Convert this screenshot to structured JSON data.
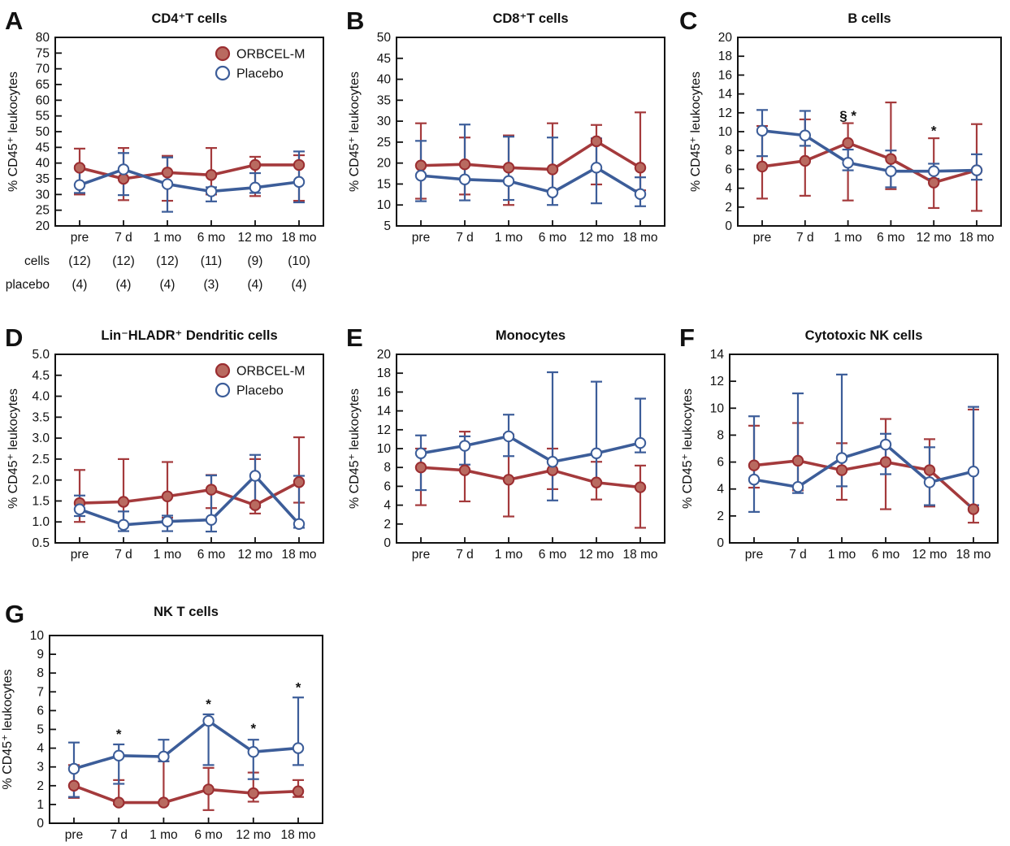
{
  "figure": {
    "type": "multi-panel-line-figure",
    "categories": [
      "pre",
      "7 d",
      "1 mo",
      "6 mo",
      "12 mo",
      "18 mo"
    ],
    "ylabel": "% CD45⁺ leukocytes"
  },
  "colors": {
    "treatment_line": "#a43a3c",
    "treatment_marker_fill": "#b96a60",
    "treatment_marker_stroke": "#9b2e31",
    "placebo_line": "#3c5d99",
    "placebo_marker_fill": "#ffffff",
    "frame": "#111111",
    "text": "#111111"
  },
  "legend": {
    "items": [
      {
        "label": "ORBCEL-M",
        "marker": "filled-red-circle"
      },
      {
        "label": "Placebo",
        "marker": "open-blue-circle"
      }
    ]
  },
  "chart_data": [
    {
      "panel": "A",
      "type": "line",
      "title": "CD4⁺T cells",
      "ylabel": "% CD45⁺ leukocytes",
      "xlabel": "",
      "categories": [
        "pre",
        "7 d",
        "1 mo",
        "6 mo",
        "12 mo",
        "18 mo"
      ],
      "ylim": [
        20,
        80
      ],
      "ystep": 5,
      "ytick_decimals": 0,
      "legend": true,
      "series": [
        {
          "name": "ORBCEL-M",
          "values": [
            38.5,
            35.0,
            37.0,
            36.2,
            39.4,
            39.4
          ],
          "err_lo": [
            30.0,
            28.2,
            28.0,
            30.0,
            29.5,
            28.0
          ],
          "err_hi": [
            44.6,
            44.8,
            42.3,
            44.8,
            42.0,
            42.5
          ]
        },
        {
          "name": "Placebo",
          "values": [
            33.0,
            38.0,
            33.3,
            31.0,
            32.2,
            34.0
          ],
          "err_lo": [
            30.5,
            29.8,
            24.5,
            27.8,
            30.5,
            27.5
          ],
          "err_hi": [
            39.0,
            43.2,
            41.8,
            32.3,
            36.8,
            43.7
          ]
        }
      ],
      "annotations": [],
      "sample_size_rows": [
        {
          "label": "cells",
          "values": [
            "(12)",
            "(12)",
            "(12)",
            "(11)",
            "(9)",
            "(10)"
          ]
        },
        {
          "label": "placebo",
          "values": [
            "(4)",
            "(4)",
            "(4)",
            "(3)",
            "(4)",
            "(4)"
          ]
        }
      ]
    },
    {
      "panel": "B",
      "type": "line",
      "title": "CD8⁺T cells",
      "ylabel": "% CD45⁺ leukocytes",
      "xlabel": "",
      "categories": [
        "pre",
        "7 d",
        "1 mo",
        "6 mo",
        "12 mo",
        "18 mo"
      ],
      "ylim": [
        5,
        50
      ],
      "ystep": 5,
      "ytick_decimals": 0,
      "legend": false,
      "series": [
        {
          "name": "ORBCEL-M",
          "values": [
            19.4,
            19.7,
            18.9,
            18.5,
            25.2,
            18.9
          ],
          "err_lo": [
            11.5,
            12.5,
            10.0,
            13.0,
            14.9,
            13.5
          ],
          "err_hi": [
            29.5,
            26.1,
            26.6,
            29.5,
            29.1,
            32.1
          ]
        },
        {
          "name": "Placebo",
          "values": [
            17.0,
            16.1,
            15.7,
            13.0,
            18.9,
            12.6
          ],
          "err_lo": [
            10.9,
            11.1,
            11.2,
            10.0,
            10.4,
            9.7
          ],
          "err_hi": [
            25.3,
            29.2,
            26.3,
            26.1,
            25.9,
            16.6
          ]
        }
      ],
      "annotations": []
    },
    {
      "panel": "C",
      "type": "line",
      "title": "B cells",
      "ylabel": "% CD45⁺ leukocytes",
      "xlabel": "",
      "categories": [
        "pre",
        "7 d",
        "1 mo",
        "6 mo",
        "12 mo",
        "18 mo"
      ],
      "ylim": [
        0,
        20
      ],
      "ystep": 2,
      "ytick_decimals": 0,
      "legend": false,
      "series": [
        {
          "name": "ORBCEL-M",
          "values": [
            6.3,
            6.9,
            8.8,
            7.1,
            4.6,
            5.9
          ],
          "err_lo": [
            2.9,
            3.2,
            2.7,
            3.9,
            1.9,
            1.6
          ],
          "err_hi": [
            10.6,
            11.3,
            10.9,
            13.1,
            9.3,
            10.8
          ]
        },
        {
          "name": "Placebo",
          "values": [
            10.1,
            9.6,
            6.7,
            5.8,
            5.8,
            5.9
          ],
          "err_lo": [
            7.4,
            8.5,
            5.9,
            4.1,
            5.0,
            4.9
          ],
          "err_hi": [
            12.3,
            12.2,
            8.1,
            8.0,
            6.6,
            7.6
          ]
        }
      ],
      "annotations": [
        {
          "x_index": 2,
          "text": "§ *",
          "y": 11.2
        },
        {
          "x_index": 4,
          "text": "*",
          "y": 9.6
        }
      ]
    },
    {
      "panel": "D",
      "type": "line",
      "title": "Lin⁻HLADR⁺ Dendritic cells",
      "ylabel": "% CD45⁺ leukocytes",
      "xlabel": "",
      "categories": [
        "pre",
        "7 d",
        "1 mo",
        "6 mo",
        "12 mo",
        "18 mo"
      ],
      "ylim": [
        0.5,
        5.0
      ],
      "ystep": 0.5,
      "ytick_decimals": 1,
      "legend": true,
      "series": [
        {
          "name": "ORBCEL-M",
          "values": [
            1.45,
            1.48,
            1.61,
            1.77,
            1.4,
            1.95
          ],
          "err_lo": [
            1.0,
            0.95,
            1.1,
            1.33,
            1.2,
            1.46
          ],
          "err_hi": [
            2.24,
            2.5,
            2.43,
            2.12,
            2.5,
            3.02
          ]
        },
        {
          "name": "Placebo",
          "values": [
            1.3,
            0.93,
            1.01,
            1.05,
            2.1,
            0.95
          ],
          "err_lo": [
            1.14,
            0.78,
            0.78,
            0.77,
            1.35,
            0.86
          ],
          "err_hi": [
            1.63,
            1.25,
            1.15,
            2.11,
            2.6,
            2.1
          ]
        }
      ],
      "annotations": []
    },
    {
      "panel": "E",
      "type": "line",
      "title": "Monocytes",
      "ylabel": "% CD45⁺ leukocytes",
      "xlabel": "",
      "categories": [
        "pre",
        "7 d",
        "1 mo",
        "6 mo",
        "12 mo",
        "18 mo"
      ],
      "ylim": [
        0,
        20
      ],
      "ystep": 2,
      "ytick_decimals": 0,
      "legend": false,
      "series": [
        {
          "name": "ORBCEL-M",
          "values": [
            8.0,
            7.7,
            6.7,
            7.7,
            6.4,
            5.9
          ],
          "err_lo": [
            4.0,
            4.4,
            2.8,
            5.7,
            4.6,
            1.6
          ],
          "err_hi": [
            10.0,
            11.8,
            11.5,
            10.0,
            8.6,
            8.2
          ]
        },
        {
          "name": "Placebo",
          "values": [
            9.5,
            10.3,
            11.3,
            8.6,
            9.5,
            10.6
          ],
          "err_lo": [
            5.6,
            8.3,
            9.2,
            4.5,
            6.5,
            9.6
          ],
          "err_hi": [
            11.4,
            11.3,
            13.6,
            18.1,
            17.1,
            15.3
          ]
        }
      ],
      "annotations": []
    },
    {
      "panel": "F",
      "type": "line",
      "title": "Cytotoxic NK cells",
      "ylabel": "% CD45⁺ leukocytes",
      "xlabel": "",
      "categories": [
        "pre",
        "7 d",
        "1 mo",
        "6 mo",
        "12 mo",
        "18 mo"
      ],
      "ylim": [
        0,
        14
      ],
      "ystep": 2,
      "ytick_decimals": 0,
      "legend": false,
      "series": [
        {
          "name": "ORBCEL-M",
          "values": [
            5.75,
            6.1,
            5.4,
            6.0,
            5.4,
            2.5
          ],
          "err_lo": [
            4.1,
            3.9,
            3.2,
            2.5,
            2.7,
            1.5
          ],
          "err_hi": [
            8.7,
            8.9,
            7.4,
            9.2,
            7.7,
            9.9
          ]
        },
        {
          "name": "Placebo",
          "values": [
            4.7,
            4.15,
            6.3,
            7.3,
            4.5,
            5.3
          ],
          "err_lo": [
            2.3,
            3.7,
            4.2,
            5.1,
            2.8,
            2.8
          ],
          "err_hi": [
            9.4,
            11.1,
            12.5,
            8.1,
            7.1,
            10.1
          ]
        }
      ],
      "annotations": []
    },
    {
      "panel": "G",
      "type": "line",
      "title": "NK T cells",
      "ylabel": "% CD45⁺ leukocytes",
      "xlabel": "",
      "categories": [
        "pre",
        "7 d",
        "1 mo",
        "6 mo",
        "12 mo",
        "18 mo"
      ],
      "ylim": [
        0,
        10
      ],
      "ystep": 1,
      "ytick_decimals": 0,
      "legend": false,
      "series": [
        {
          "name": "ORBCEL-M",
          "values": [
            2.0,
            1.1,
            1.1,
            1.8,
            1.6,
            1.7
          ],
          "err_lo": [
            1.35,
            1.0,
            1.05,
            0.7,
            1.15,
            1.4
          ],
          "err_hi": [
            3.1,
            2.3,
            3.3,
            2.95,
            2.7,
            2.3
          ]
        },
        {
          "name": "Placebo",
          "values": [
            2.9,
            3.6,
            3.55,
            5.45,
            3.8,
            4.0
          ],
          "err_lo": [
            1.4,
            2.1,
            3.3,
            3.1,
            2.35,
            3.1
          ],
          "err_hi": [
            4.3,
            4.2,
            4.45,
            5.8,
            4.45,
            6.7
          ]
        }
      ],
      "annotations": [
        {
          "x_index": 1,
          "text": "*",
          "y": 4.5
        },
        {
          "x_index": 3,
          "text": "*",
          "y": 6.1
        },
        {
          "x_index": 4,
          "text": "*",
          "y": 4.8
        },
        {
          "x_index": 5,
          "text": "*",
          "y": 7.0
        }
      ]
    }
  ]
}
